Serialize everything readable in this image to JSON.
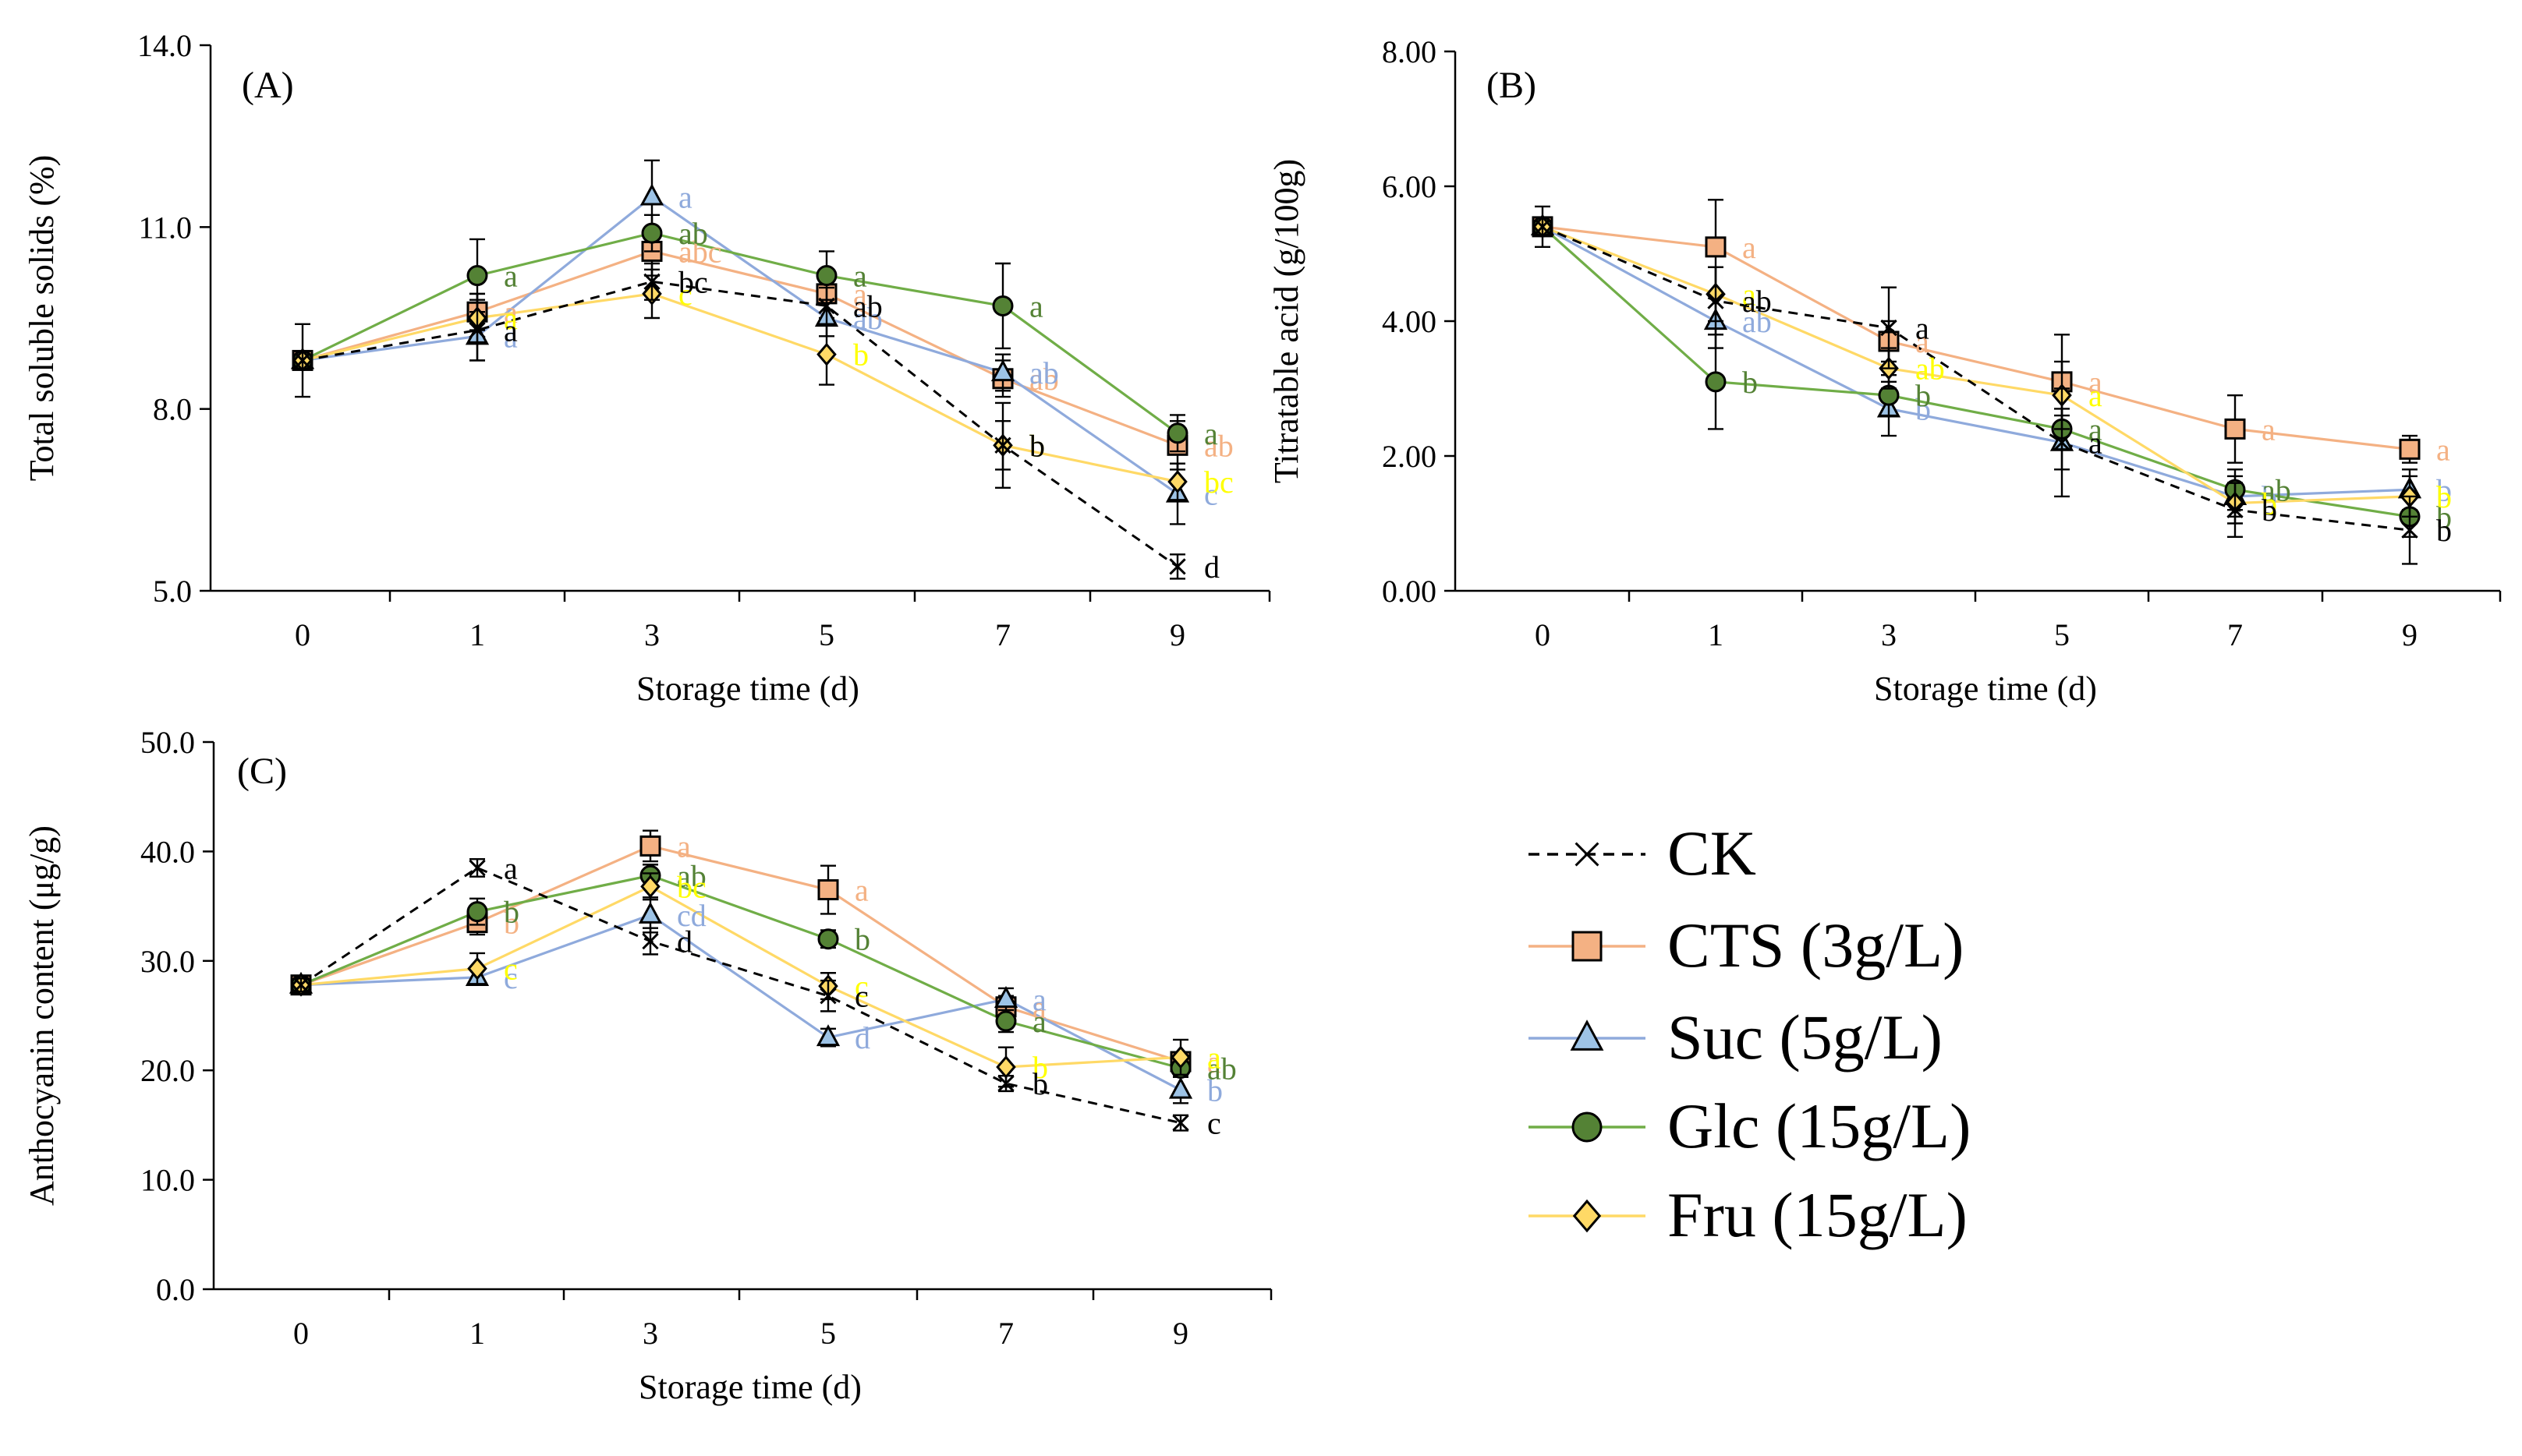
{
  "legend": [
    {
      "key": "CK",
      "label": "CK",
      "color": "#000000",
      "line_color": "#000000",
      "marker": "x",
      "dashed": true
    },
    {
      "key": "CTS",
      "label": "CTS (3g/L)",
      "color": "#F4B183",
      "line_color": "#F4B183",
      "marker": "square",
      "dashed": false
    },
    {
      "key": "Suc",
      "label": "Suc (5g/L)",
      "color": "#9DC3E6",
      "line_color": "#8FAADC",
      "marker": "triangle",
      "dashed": false
    },
    {
      "key": "Glc",
      "label": "Glc (15g/L)",
      "color": "#548235",
      "line_color": "#70AD47",
      "marker": "circle",
      "dashed": false
    },
    {
      "key": "Fru",
      "label": "Fru (15g/L)",
      "color": "#FFD966",
      "line_color": "#FFD966",
      "marker": "diamond",
      "dashed": false
    }
  ],
  "letter_colors": {
    "CK": "#000000",
    "CTS": "#F4B183",
    "Suc": "#8FAADC",
    "Glc": "#548235",
    "Fru": "#FFFF00"
  },
  "chart_data": [
    {
      "id": "A",
      "type": "line",
      "panel_label": "(A)",
      "xlabel": "Storage time (d)",
      "ylabel": "Total soluble solids (%)",
      "categories": [
        "0",
        "1",
        "3",
        "5",
        "7",
        "9"
      ],
      "ylim": [
        5.0,
        14.0
      ],
      "yticks": [
        "5.0",
        "8.0",
        "11.0",
        "14.0"
      ],
      "series": [
        {
          "name": "CK",
          "values": [
            8.8,
            9.3,
            10.1,
            9.7,
            7.4,
            5.4
          ],
          "errors": [
            0.6,
            0.5,
            0.3,
            0.3,
            0.7,
            0.2
          ],
          "letters": [
            "",
            "a",
            "bc",
            "ab",
            "b",
            "d"
          ]
        },
        {
          "name": "CTS",
          "values": [
            8.8,
            9.6,
            10.6,
            9.9,
            8.5,
            7.4
          ],
          "errors": [
            0.0,
            0.3,
            0.4,
            0.4,
            0.3,
            0.4
          ],
          "letters": [
            "",
            "a",
            "abc",
            "a",
            "ab",
            "ab"
          ]
        },
        {
          "name": "Suc",
          "values": [
            8.8,
            9.2,
            11.5,
            9.5,
            8.6,
            6.6
          ],
          "errors": [
            0.0,
            0.4,
            0.6,
            0.3,
            0.3,
            0.5
          ],
          "letters": [
            "",
            "a",
            "a",
            "ab",
            "ab",
            "c"
          ]
        },
        {
          "name": "Glc",
          "values": [
            8.8,
            10.2,
            10.9,
            10.2,
            9.7,
            7.6
          ],
          "errors": [
            0.0,
            0.6,
            0.3,
            0.4,
            0.7,
            0.3
          ],
          "letters": [
            "",
            "a",
            "ab",
            "a",
            "a",
            "a"
          ]
        },
        {
          "name": "Fru",
          "values": [
            8.8,
            9.5,
            9.9,
            8.9,
            7.4,
            6.8
          ],
          "errors": [
            0.0,
            0.4,
            0.4,
            0.5,
            0.4,
            0.3
          ],
          "letters": [
            "",
            "a",
            "c",
            "b",
            "b",
            "bc"
          ]
        }
      ]
    },
    {
      "id": "B",
      "type": "line",
      "panel_label": "(B)",
      "xlabel": "Storage time (d)",
      "ylabel": "Titratable  acid (g/100g)",
      "categories": [
        "0",
        "1",
        "3",
        "5",
        "7",
        "9"
      ],
      "ylim": [
        0.0,
        8.0
      ],
      "yticks": [
        "0.00",
        "2.00",
        "4.00",
        "6.00",
        "8.00"
      ],
      "series": [
        {
          "name": "CK",
          "values": [
            5.4,
            4.3,
            3.9,
            2.2,
            1.2,
            0.9
          ],
          "errors": [
            0.3,
            0.5,
            0.6,
            0.8,
            0.4,
            0.5
          ],
          "letters": [
            "",
            "ab",
            "a",
            "a",
            "b",
            "b"
          ]
        },
        {
          "name": "CTS",
          "values": [
            5.4,
            5.1,
            3.7,
            3.1,
            2.4,
            2.1
          ],
          "errors": [
            0.0,
            0.7,
            0.3,
            0.7,
            0.5,
            0.2
          ],
          "letters": [
            "",
            "a",
            "a",
            "a",
            "a",
            "a"
          ]
        },
        {
          "name": "Suc",
          "values": [
            5.4,
            4.0,
            2.7,
            2.2,
            1.4,
            1.5
          ],
          "errors": [
            0.0,
            0.4,
            0.4,
            0.4,
            0.3,
            0.3
          ],
          "letters": [
            "",
            "ab",
            "b",
            "a",
            "b",
            "b"
          ]
        },
        {
          "name": "Glc",
          "values": [
            5.4,
            3.1,
            2.9,
            2.4,
            1.5,
            1.1
          ],
          "errors": [
            0.0,
            0.7,
            0.3,
            0.3,
            0.3,
            0.3
          ],
          "letters": [
            "",
            "b",
            "b",
            "a",
            "ab",
            "b"
          ]
        },
        {
          "name": "Fru",
          "values": [
            5.4,
            4.4,
            3.3,
            2.9,
            1.3,
            1.4
          ],
          "errors": [
            0.0,
            0.4,
            0.3,
            0.5,
            0.3,
            0.3
          ],
          "letters": [
            "",
            "a",
            "ab",
            "a",
            "b",
            "b"
          ]
        }
      ]
    },
    {
      "id": "C",
      "type": "line",
      "panel_label": "(C)",
      "xlabel": "Storage time (d)",
      "ylabel": "Anthocyanin content (μg/g)",
      "categories": [
        "0",
        "1",
        "3",
        "5",
        "7",
        "9"
      ],
      "ylim": [
        0.0,
        50.0
      ],
      "yticks": [
        "0.0",
        "10.0",
        "20.0",
        "30.0",
        "40.0",
        "50.0"
      ],
      "series": [
        {
          "name": "CK",
          "values": [
            27.8,
            38.5,
            31.8,
            26.8,
            18.8,
            15.2
          ],
          "errors": [
            0.6,
            0.8,
            1.2,
            1.4,
            0.7,
            0.7
          ],
          "letters": [
            "",
            "a",
            "d",
            "c",
            "b",
            "c"
          ]
        },
        {
          "name": "CTS",
          "values": [
            27.8,
            33.5,
            40.5,
            36.5,
            25.8,
            20.8
          ],
          "errors": [
            0.0,
            1.1,
            1.4,
            2.2,
            1.0,
            0.8
          ],
          "letters": [
            "",
            "b",
            "a",
            "a",
            "a",
            "a"
          ]
        },
        {
          "name": "Suc",
          "values": [
            27.8,
            28.5,
            34.2,
            23.0,
            26.5,
            18.2
          ],
          "errors": [
            0.0,
            0.7,
            1.6,
            0.8,
            1.0,
            1.2
          ],
          "letters": [
            "",
            "c",
            "cd",
            "d",
            "a",
            "b"
          ]
        },
        {
          "name": "Glc",
          "values": [
            27.8,
            34.5,
            37.8,
            32.0,
            24.5,
            20.2
          ],
          "errors": [
            0.0,
            1.2,
            1.0,
            0.8,
            1.0,
            0.8
          ],
          "letters": [
            "",
            "b",
            "ab",
            "b",
            "a",
            "ab"
          ]
        },
        {
          "name": "Fru",
          "values": [
            27.8,
            29.3,
            36.8,
            27.7,
            20.3,
            21.2
          ],
          "errors": [
            0.0,
            1.4,
            1.2,
            1.2,
            1.8,
            1.6
          ],
          "letters": [
            "",
            "c",
            "bc",
            "c",
            "b",
            "a"
          ]
        }
      ]
    }
  ]
}
